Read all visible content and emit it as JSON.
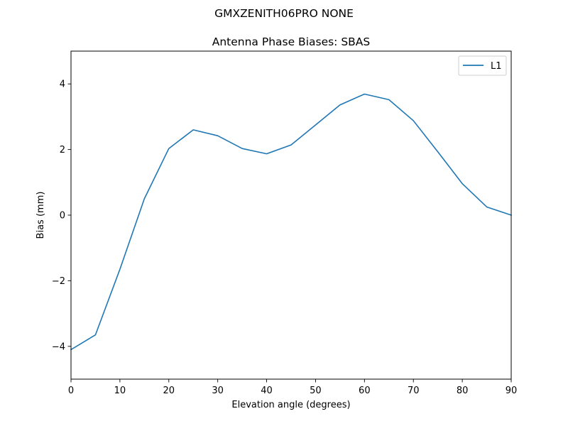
{
  "suptitle": "GMXZENITH06PRO  NONE",
  "chart_data": {
    "type": "line",
    "title": "Antenna Phase Biases: SBAS",
    "xlabel": "Elevation angle (degrees)",
    "ylabel": "Bias (mm)",
    "xlim": [
      0,
      90
    ],
    "ylim": [
      -5,
      5
    ],
    "xticks": [
      0,
      10,
      20,
      30,
      40,
      50,
      60,
      70,
      80,
      90
    ],
    "yticks": [
      -4,
      -2,
      0,
      2,
      4
    ],
    "xtick_labels": [
      "0",
      "10",
      "20",
      "30",
      "40",
      "50",
      "60",
      "70",
      "80",
      "90"
    ],
    "ytick_labels": [
      "−4",
      "−2",
      "0",
      "2",
      "4"
    ],
    "grid": false,
    "legend_position": "top-right",
    "x": [
      0,
      5,
      10,
      15,
      20,
      25,
      30,
      35,
      40,
      45,
      50,
      55,
      60,
      65,
      70,
      75,
      80,
      85,
      90
    ],
    "series": [
      {
        "name": "L1",
        "color": "#1f77b4",
        "values": [
          -4.1,
          -3.65,
          -1.65,
          0.5,
          2.03,
          2.6,
          2.42,
          2.03,
          1.87,
          2.14,
          2.75,
          3.36,
          3.69,
          3.52,
          2.88,
          1.93,
          0.96,
          0.25,
          0.0
        ]
      }
    ]
  }
}
